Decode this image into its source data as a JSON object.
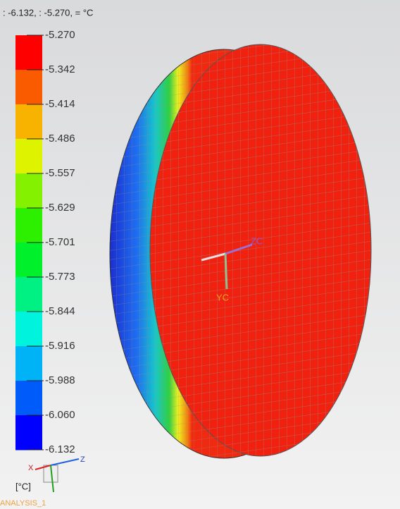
{
  "header": {
    "range_text": ": -6.132, : -5.270, = °C"
  },
  "legend": {
    "labels": [
      "-5.270",
      "-5.342",
      "-5.414",
      "-5.486",
      "-5.557",
      "-5.629",
      "-5.701",
      "-5.773",
      "-5.844",
      "-5.916",
      "-5.988",
      "-6.060",
      "-6.132"
    ],
    "unit": "[°C]"
  },
  "model": {
    "axis_labels": {
      "zc": "ZC",
      "yc": "YC"
    }
  },
  "triad": {
    "x": "X",
    "z": "Z"
  },
  "footer": {
    "analysis": "ANALYSIS_1"
  }
}
